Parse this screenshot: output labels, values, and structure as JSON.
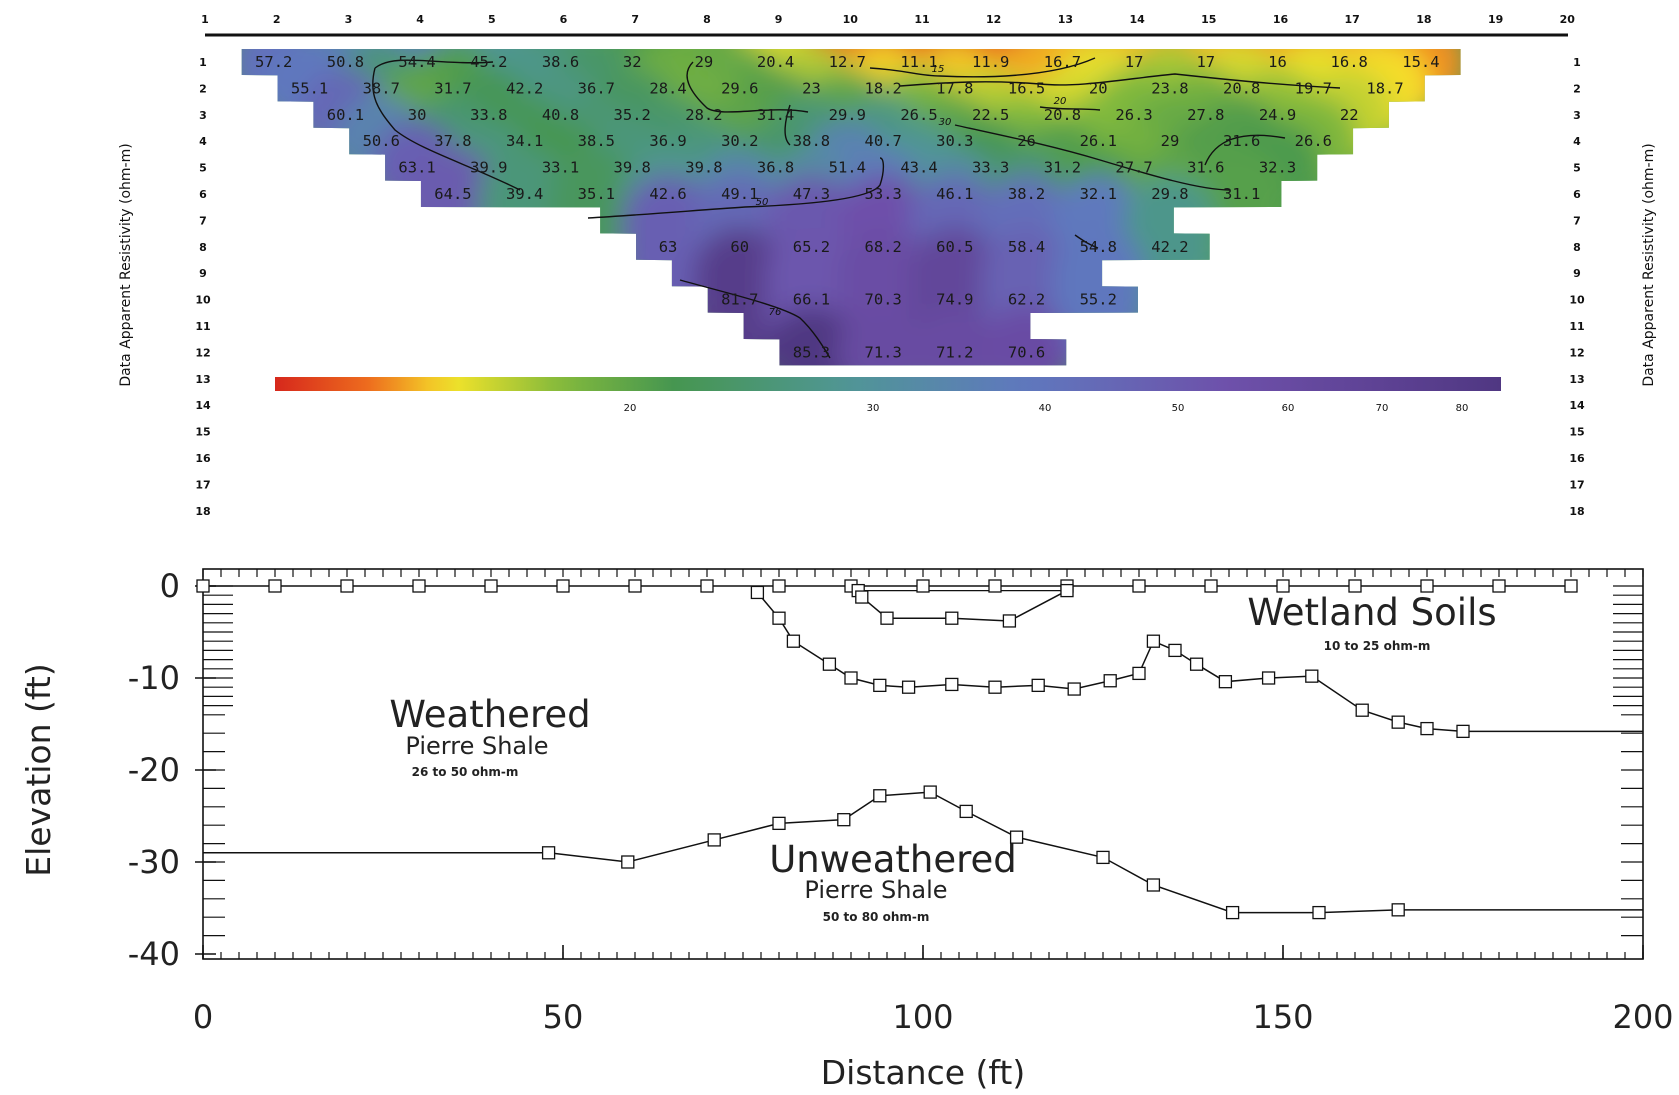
{
  "chart_data": [
    {
      "type": "heatmap",
      "title": "",
      "ylabel_left": "Data Apparent Resistivity (ohm-m)",
      "ylabel_right": "Data Apparent Resistivity (ohm-m)",
      "top_ticks": [
        "1",
        "2",
        "3",
        "4",
        "5",
        "6",
        "7",
        "8",
        "9",
        "10",
        "11",
        "12",
        "13",
        "14",
        "15",
        "16",
        "17",
        "18",
        "19",
        "20"
      ],
      "level_ticks": [
        "1",
        "2",
        "3",
        "4",
        "5",
        "6",
        "7",
        "8",
        "9",
        "10",
        "11",
        "12",
        "13",
        "14",
        "15",
        "16",
        "17",
        "18"
      ],
      "rows": [
        {
          "level": 1,
          "start": 1.5,
          "values": [
            "57.2",
            "50.8",
            "54.4",
            "45.2",
            "38.6",
            "32",
            "29",
            "20.4",
            "12.7",
            "11.1",
            "11.9",
            "16.7",
            "17",
            "17",
            "16",
            "16.8",
            "15.4"
          ]
        },
        {
          "level": 2,
          "start": 2.0,
          "values": [
            "55.1",
            "38.7",
            "31.7",
            "42.2",
            "36.7",
            "28.4",
            "29.6",
            "23",
            "18.2",
            "17.8",
            "16.5",
            "20",
            "23.8",
            "20.8",
            "19.7",
            "18.7"
          ]
        },
        {
          "level": 3,
          "start": 2.5,
          "values": [
            "60.1",
            "30",
            "33.8",
            "40.8",
            "35.2",
            "28.2",
            "31.4",
            "29.9",
            "26.5",
            "22.5",
            "20.8",
            "26.3",
            "27.8",
            "24.9",
            "22"
          ]
        },
        {
          "level": 4,
          "start": 3.0,
          "values": [
            "50.6",
            "37.8",
            "34.1",
            "38.5",
            "36.9",
            "30.2",
            "38.8",
            "40.7",
            "30.3",
            "26",
            "26.1",
            "29",
            "31.6",
            "26.6"
          ]
        },
        {
          "level": 5,
          "start": 3.5,
          "values": [
            "63.1",
            "39.9",
            "33.1",
            "39.8",
            "39.8",
            "36.8",
            "51.4",
            "43.4",
            "33.3",
            "31.2",
            "27.7",
            "31.6",
            "32.3"
          ]
        },
        {
          "level": 6,
          "start": 4.0,
          "values": [
            "64.5",
            "39.4",
            "35.1",
            "42.6",
            "49.1",
            "47.3",
            "53.3",
            "46.1",
            "38.2",
            "32.1",
            "29.8",
            "31.1"
          ]
        },
        {
          "level": 8,
          "start": 7.0,
          "values": [
            "63",
            "60",
            "65.2",
            "68.2",
            "60.5",
            "58.4",
            "54.8",
            "42.2"
          ]
        },
        {
          "level": 10,
          "start": 8.0,
          "values": [
            "81.7",
            "66.1",
            "70.3",
            "74.9",
            "62.2",
            "55.2"
          ]
        },
        {
          "level": 12,
          "start": 9.0,
          "values": [
            "85.3",
            "71.3",
            "71.2",
            "70.6"
          ]
        }
      ],
      "contour_labels": [
        "15",
        "20",
        "30",
        "50",
        "76"
      ],
      "colorbar": {
        "min": 8,
        "max": 85,
        "ticks": [
          "20",
          "30",
          "40",
          "50",
          "60",
          "70",
          "80"
        ],
        "tick_values": [
          20,
          30,
          40,
          50,
          60,
          70,
          80
        ]
      },
      "colors": {
        "low": "#e03a1a",
        "mid_low": "#f2e62a",
        "mid": "#4e9a52",
        "mid_high": "#5f7fbf",
        "high": "#5e3a8e"
      }
    },
    {
      "type": "line",
      "title": "",
      "xlabel": "Distance (ft)",
      "ylabel": "Elevation (ft)",
      "xlim": [
        0,
        200
      ],
      "ylim": [
        -40,
        0
      ],
      "x_ticks": [
        "0",
        "50",
        "100",
        "150",
        "200"
      ],
      "y_ticks": [
        "0",
        "-10",
        "-20",
        "-30",
        "-40"
      ],
      "y_tick_values": [
        0,
        -10,
        -20,
        -30,
        -40
      ],
      "series": [
        {
          "values": [
            [
              0,
              0
            ],
            [
              10,
              0
            ],
            [
              20,
              0
            ],
            [
              30,
              0
            ],
            [
              40,
              0
            ],
            [
              50,
              0
            ],
            [
              60,
              0
            ],
            [
              70,
              0
            ],
            [
              80,
              0
            ],
            [
              90,
              0
            ],
            [
              100,
              0
            ],
            [
              110,
              0
            ],
            [
              120,
              0
            ],
            [
              130,
              0
            ],
            [
              140,
              0
            ],
            [
              150,
              0
            ],
            [
              160,
              0
            ],
            [
              170,
              0
            ],
            [
              180,
              0
            ],
            [
              190,
              0
            ]
          ]
        },
        {
          "values": [
            [
              77,
              -0.7
            ],
            [
              80,
              -3.5
            ],
            [
              82,
              -6
            ],
            [
              87,
              -8.5
            ],
            [
              90,
              -10
            ],
            [
              94,
              -10.8
            ],
            [
              98,
              -11
            ],
            [
              104,
              -10.7
            ],
            [
              110,
              -11
            ],
            [
              116,
              -10.8
            ],
            [
              121,
              -11.2
            ],
            [
              126,
              -10.3
            ],
            [
              130,
              -9.5
            ],
            [
              132,
              -6
            ],
            [
              135,
              -7
            ],
            [
              138,
              -8.5
            ],
            [
              142,
              -10.4
            ],
            [
              148,
              -10
            ],
            [
              154,
              -9.8
            ],
            [
              161,
              -13.5
            ],
            [
              166,
              -14.8
            ],
            [
              170,
              -15.5
            ],
            [
              175,
              -15.8
            ],
            [
              200,
              -15.8
            ]
          ]
        },
        {
          "values": [
            [
              91,
              -0.5
            ],
            [
              91.5,
              -1.2
            ],
            [
              95,
              -3.5
            ],
            [
              104,
              -3.5
            ],
            [
              112,
              -3.8
            ],
            [
              120,
              -0.5
            ]
          ]
        },
        {
          "values": [
            [
              0,
              -29
            ],
            [
              48,
              -29
            ],
            [
              59,
              -30
            ],
            [
              71,
              -27.6
            ],
            [
              80,
              -25.8
            ],
            [
              89,
              -25.4
            ],
            [
              94,
              -22.8
            ],
            [
              101,
              -22.4
            ],
            [
              106,
              -24.5
            ],
            [
              113,
              -27.3
            ],
            [
              125,
              -29.5
            ],
            [
              132,
              -32.5
            ],
            [
              143,
              -35.5
            ],
            [
              155,
              -35.5
            ],
            [
              166,
              -35.2
            ],
            [
              200,
              -35.2
            ]
          ]
        }
      ],
      "annotations": [
        {
          "name": "Wetland Soils",
          "range": "10 to 25 ohm-m"
        },
        {
          "name_line1": "Weathered",
          "name_line2": "Pierre Shale",
          "range": "26 to 50 ohm-m"
        },
        {
          "name_line1": "Unweathered",
          "name_line2": "Pierre Shale",
          "range": "50 to 80 ohm-m"
        }
      ]
    }
  ]
}
